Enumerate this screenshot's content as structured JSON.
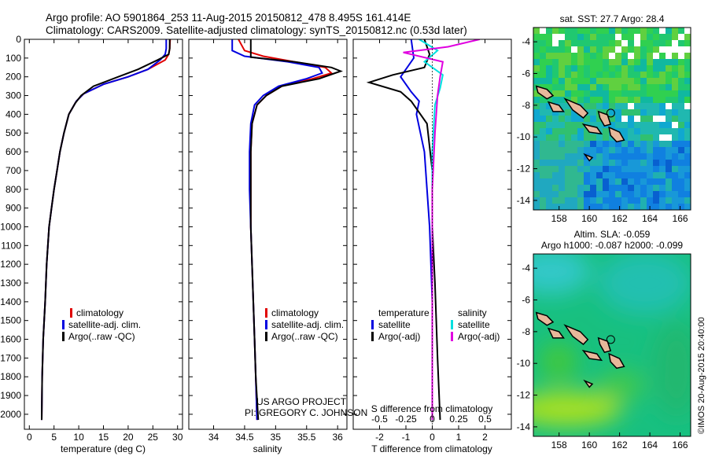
{
  "header": {
    "line1": "Argo profile: AO 5901864_253 11-Aug-2015 20150812_478 8.495S 161.414E",
    "line2": "Climatology: CARS2009. Satellite-adjusted climatology: synTS_20150812.nc (0.53d later)"
  },
  "colors": {
    "climatology": "#e00000",
    "satellite": "#0000e0",
    "argo": "#000000",
    "sat_diff": "#00e0e0",
    "argo_s_diff": "#e000e0",
    "land": "#e8b89a"
  },
  "legend_temperature": {
    "items": [
      "climatology",
      "satellite-adj. clim.",
      "Argo(..raw -QC)"
    ]
  },
  "legend_salinity": {
    "items": [
      "climatology",
      "satellite-adj. clim.",
      "Argo(..raw -QC)"
    ]
  },
  "legend_diff": {
    "temp_header": "temperature",
    "sal_header": "salinity",
    "temp_items": [
      "satellite",
      "Argo(-adj)"
    ],
    "sal_items": [
      "satellite",
      "Argo(-adj)"
    ]
  },
  "credit": {
    "line1": "US ARGO PROJECT",
    "line2": "PI: GREGORY C. JOHNSON"
  },
  "map_top": {
    "title": "sat. SST: 27.7 Argo: 28.4"
  },
  "map_bottom": {
    "title1": "Altim. SLA: -0.059",
    "title2": "Argo h1000: -0.087 h2000: -0.099"
  },
  "watermark": "©IMOS 20-Aug-2015 20:40:00",
  "chart_data": [
    {
      "type": "line",
      "xlabel": "temperature (deg C)",
      "ylabel": "",
      "xlim": [
        -1,
        31
      ],
      "ylim": [
        2080,
        0
      ],
      "xticks": [
        0,
        5,
        10,
        15,
        20,
        25,
        30
      ],
      "yticks": [
        0,
        100,
        200,
        300,
        400,
        500,
        600,
        700,
        800,
        900,
        1000,
        1100,
        1200,
        1300,
        1400,
        1500,
        1600,
        1700,
        1800,
        1900,
        2000
      ],
      "series": [
        {
          "name": "climatology",
          "color": "#e00000",
          "x": [
            28.5,
            28.4,
            28.2,
            27.5,
            24,
            20,
            15,
            11,
            9.5,
            8,
            7,
            6.2,
            5.6,
            5,
            4.5,
            4,
            3.5,
            3.2,
            2.8,
            2.6,
            2.5
          ],
          "y": [
            0,
            50,
            80,
            110,
            160,
            200,
            240,
            290,
            330,
            400,
            500,
            600,
            700,
            800,
            900,
            1000,
            1200,
            1400,
            1600,
            1800,
            2030
          ]
        },
        {
          "name": "satellite-adj. clim.",
          "color": "#0000e0",
          "x": [
            27.7,
            27.7,
            27.5,
            26.5,
            24,
            20,
            15,
            11,
            9.5,
            8,
            7,
            6.2,
            5.6,
            5,
            4.5,
            4,
            3.5,
            3.2,
            2.8,
            2.6,
            2.5
          ],
          "y": [
            0,
            50,
            80,
            110,
            160,
            200,
            240,
            290,
            330,
            400,
            500,
            600,
            700,
            800,
            900,
            1000,
            1200,
            1400,
            1600,
            1800,
            2030
          ]
        },
        {
          "name": "Argo(..raw -QC)",
          "color": "#000000",
          "x": [
            28.4,
            28.4,
            28.2,
            26,
            22,
            18,
            13,
            10.5,
            9.3,
            8,
            7,
            6.2,
            5.6,
            5,
            4.5,
            4,
            3.5,
            3.2,
            2.8,
            2.6,
            2.5
          ],
          "y": [
            0,
            50,
            80,
            110,
            160,
            200,
            250,
            300,
            340,
            400,
            500,
            600,
            700,
            800,
            900,
            1000,
            1200,
            1400,
            1600,
            1800,
            2030
          ]
        }
      ]
    },
    {
      "type": "line",
      "xlabel": "salinity",
      "ylabel": "",
      "xlim": [
        33.6,
        36.15
      ],
      "ylim": [
        2080,
        0
      ],
      "xticks": [
        34,
        34.5,
        35,
        35.5,
        36
      ],
      "series": [
        {
          "name": "climatology",
          "color": "#e00000",
          "x": [
            34.4,
            34.5,
            34.8,
            35.3,
            35.8,
            35.9,
            35.6,
            35.1,
            34.85,
            34.7,
            34.62,
            34.6,
            34.6,
            34.6,
            34.62,
            34.64,
            34.66,
            34.68,
            34.7
          ],
          "y": [
            0,
            60,
            90,
            120,
            150,
            180,
            210,
            250,
            300,
            350,
            450,
            600,
            800,
            1000,
            1200,
            1400,
            1600,
            1800,
            2030
          ]
        },
        {
          "name": "satellite-adj. clim.",
          "color": "#0000e0",
          "x": [
            34.3,
            34.3,
            34.5,
            35.2,
            35.7,
            35.75,
            35.5,
            35.05,
            34.8,
            34.66,
            34.6,
            34.58,
            34.58,
            34.6,
            34.62,
            34.64,
            34.66,
            34.68,
            34.7
          ],
          "y": [
            0,
            60,
            90,
            120,
            150,
            180,
            210,
            250,
            300,
            350,
            450,
            600,
            800,
            1000,
            1200,
            1400,
            1600,
            1800,
            2030
          ]
        },
        {
          "name": "Argo(..raw -QC)",
          "color": "#000000",
          "x": [
            34.6,
            34.6,
            34.6,
            35.3,
            35.9,
            36.05,
            35.7,
            35.1,
            34.85,
            34.7,
            34.62,
            34.6,
            34.6,
            34.6,
            34.62,
            34.64,
            34.66,
            34.68,
            34.72
          ],
          "y": [
            0,
            60,
            95,
            120,
            150,
            170,
            210,
            250,
            300,
            350,
            450,
            600,
            800,
            1000,
            1200,
            1400,
            1600,
            1800,
            2030
          ]
        }
      ]
    },
    {
      "type": "line",
      "xlabel": "T difference from climatology",
      "xlabel_top": "S difference from climatology",
      "xlim": [
        -3,
        3
      ],
      "ylim": [
        2080,
        0
      ],
      "xticks": [
        -2,
        -1,
        0,
        1,
        2
      ],
      "xticks_s_labels": [
        "-0.5",
        "-0.25",
        "0",
        "0.25",
        "0.5"
      ],
      "xticks_s": [
        -2,
        -1,
        0,
        1,
        2
      ],
      "series": [
        {
          "name": "temperature satellite",
          "color": "#0000e0",
          "x": [
            -0.8,
            -0.7,
            -1.2,
            -0.8,
            -0.5,
            -0.6,
            -0.3,
            -0.2,
            -0.1,
            0,
            0,
            0
          ],
          "y": [
            0,
            100,
            200,
            280,
            330,
            400,
            600,
            800,
            1000,
            1400,
            1800,
            2030
          ]
        },
        {
          "name": "temperature Argo(-adj)",
          "color": "#000000",
          "x": [
            -0.3,
            -0.1,
            -0.3,
            -1.5,
            -2.4,
            -1.2,
            -0.8,
            -0.2,
            0,
            0,
            0.1,
            0.2,
            0.3
          ],
          "y": [
            0,
            80,
            150,
            190,
            230,
            280,
            330,
            450,
            700,
            1000,
            1300,
            1700,
            2030
          ]
        },
        {
          "name": "salinity satellite",
          "color": "#00e0e0",
          "x": [
            -0.5,
            0.2,
            -0.3,
            0.4,
            0.3,
            0.1,
            0,
            0,
            0,
            0
          ],
          "y": [
            0,
            60,
            120,
            190,
            260,
            350,
            600,
            1000,
            1500,
            2030
          ]
        },
        {
          "name": "salinity Argo(-adj)",
          "color": "#e000e0",
          "x": [
            1.8,
            0.6,
            -1.1,
            0.4,
            0.3,
            0.2,
            0.1,
            0,
            0,
            0
          ],
          "y": [
            0,
            40,
            70,
            120,
            200,
            300,
            500,
            800,
            1400,
            2030
          ]
        }
      ]
    },
    {
      "type": "heatmap",
      "title": "sat. SST: 27.7 Argo: 28.4",
      "xlim": [
        156.3,
        166.7
      ],
      "ylim": [
        -14.6,
        -3.1
      ],
      "xticks": [
        158,
        160,
        162,
        164,
        166
      ],
      "yticks": [
        -4,
        -6,
        -8,
        -10,
        -12,
        -14
      ],
      "argo_marker": {
        "lon": 161.414,
        "lat": -8.495
      }
    },
    {
      "type": "heatmap",
      "title": "Altim. SLA: -0.059",
      "xlim": [
        156.3,
        166.7
      ],
      "ylim": [
        -14.6,
        -3.1
      ],
      "xticks": [
        158,
        160,
        162,
        164,
        166
      ],
      "yticks": [
        -4,
        -6,
        -8,
        -10,
        -12,
        -14
      ],
      "argo_marker": {
        "lon": 161.414,
        "lat": -8.495
      }
    }
  ]
}
